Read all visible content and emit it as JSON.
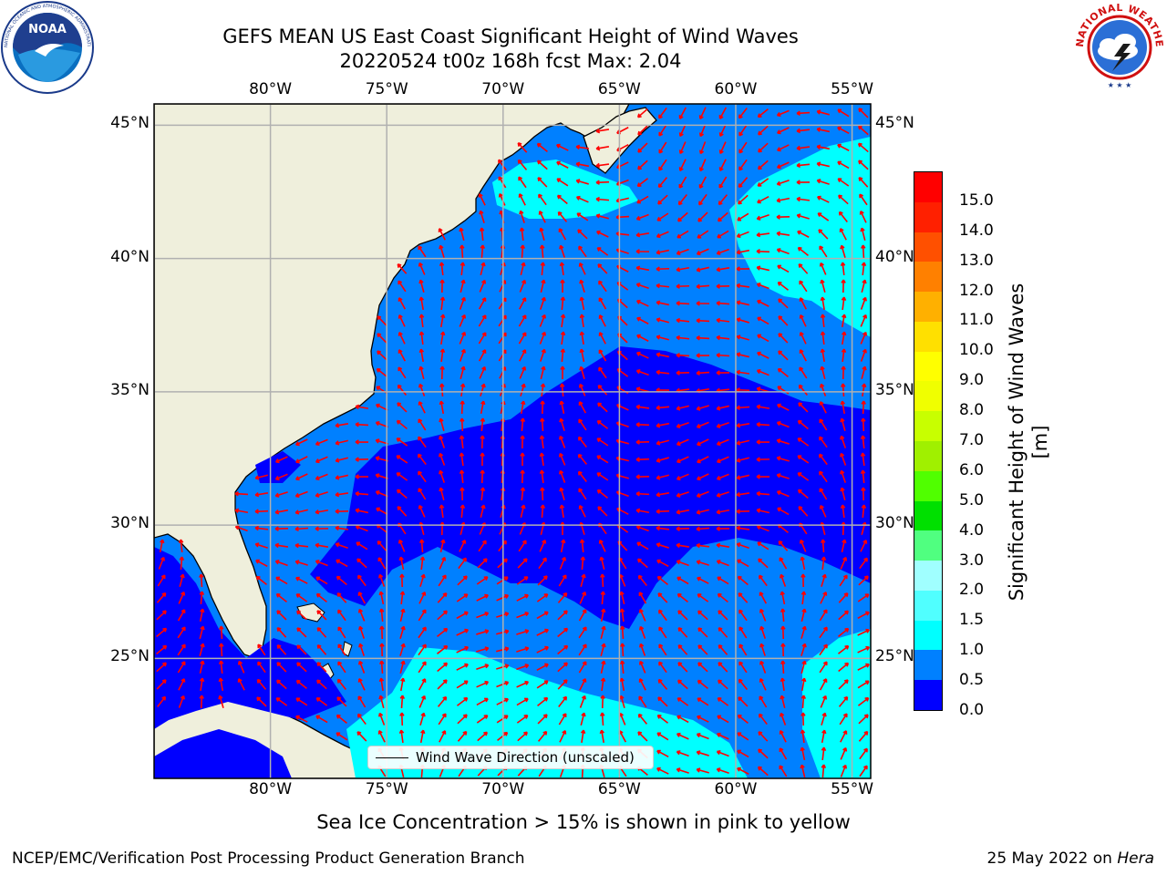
{
  "header": {
    "title_line1": "GEFS MEAN US East Coast Significant Height of Wind Waves",
    "title_line2": "20220524 t00z 168h fcst   Max: 2.04"
  },
  "logos": {
    "left": "noaa-logo",
    "right": "nws-logo",
    "noaa_text": "NOAA",
    "noaa_ring_text": "NATIONAL OCEANIC AND ATMOSPHERIC ADMINISTRATION · U.S. DEPARTMENT OF COMMERCE",
    "nws_ring_text": "NATIONAL WEATHER SERVICE"
  },
  "map": {
    "lon_ticks": [
      "80°W",
      "75°W",
      "70°W",
      "65°W",
      "60°W",
      "55°W"
    ],
    "lat_ticks": [
      "45°N",
      "40°N",
      "35°N",
      "30°N",
      "25°N"
    ],
    "lon_values": [
      -80,
      -75,
      -70,
      -65,
      -60,
      -55
    ],
    "lat_values": [
      45,
      40,
      35,
      30,
      25
    ],
    "extent": {
      "lon_min": -85,
      "lon_max": -54.2,
      "lat_min": 20.5,
      "lat_max": 45.8
    },
    "arrow_color": "#ff0000",
    "land_color": "#efefdc",
    "gridline_color": "#b0b0b0"
  },
  "colorbar": {
    "title": "Significant Height of Wind Waves [m]",
    "labels": [
      "0.0",
      "0.5",
      "1.0",
      "1.5",
      "2.0",
      "3.0",
      "4.0",
      "5.0",
      "6.0",
      "7.0",
      "8.0",
      "9.0",
      "10.0",
      "11.0",
      "12.0",
      "13.0",
      "14.0",
      "15.0"
    ],
    "colors": [
      "#0000ff",
      "#0080ff",
      "#00ffff",
      "#50ffff",
      "#a0ffff",
      "#50ff80",
      "#00e000",
      "#50ff00",
      "#a0f000",
      "#c8ff00",
      "#f0ff00",
      "#ffff00",
      "#ffe000",
      "#ffb000",
      "#ff8000",
      "#ff5000",
      "#ff2000",
      "#ff0000"
    ]
  },
  "legend": {
    "label": "Wind Wave Direction (unscaled)"
  },
  "footer": {
    "sea_ice_note": "Sea Ice Concentration > 15% is shown in pink to yellow",
    "credit_left": "NCEP/EMC/Verification Post Processing Product Generation Branch",
    "credit_date": "25 May 2022 on ",
    "credit_host": "Hera"
  }
}
